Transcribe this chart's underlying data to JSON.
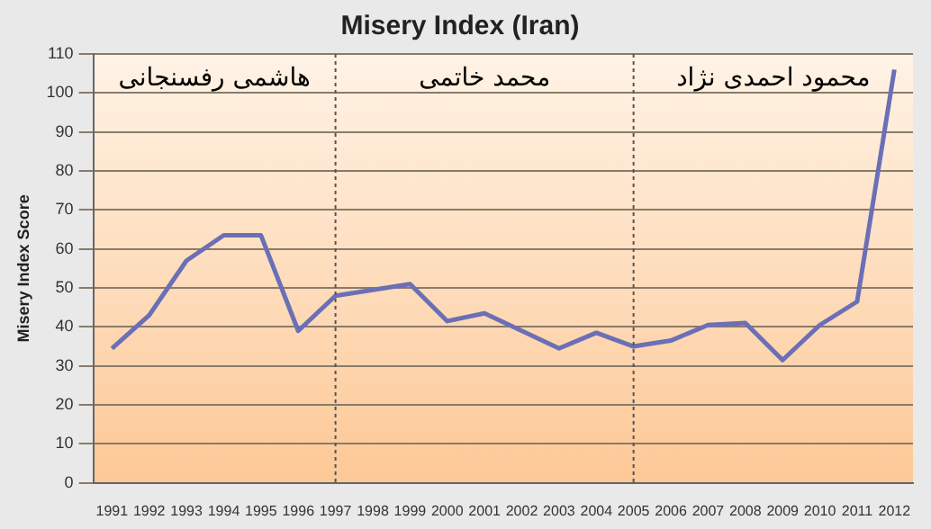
{
  "chart_data": {
    "type": "line",
    "title": "Misery Index (Iran)",
    "ylabel": "Misery Index Score",
    "categories": [
      "1991",
      "1992",
      "1993",
      "1994",
      "1995",
      "1996",
      "1997",
      "1998",
      "1999",
      "2000",
      "2001",
      "2002",
      "2003",
      "2004",
      "2005",
      "2006",
      "2007",
      "2008",
      "2009",
      "2010",
      "2011",
      "2012"
    ],
    "series": [
      {
        "color": "#6b6fb5",
        "values": [
          34.5,
          43,
          57,
          63.5,
          63.5,
          39,
          48,
          49.5,
          51,
          41.5,
          43.5,
          39,
          34.5,
          38.5,
          35,
          36.5,
          40.5,
          41,
          31.5,
          40.5,
          46.5,
          106
        ]
      }
    ],
    "ylim": [
      0,
      110
    ],
    "yticks": [
      0,
      10,
      20,
      30,
      40,
      50,
      60,
      70,
      80,
      90,
      100,
      110
    ],
    "ref_lines": [
      {
        "axis": "x",
        "value": "1997",
        "line_style": "dotted",
        "color": "#555555"
      },
      {
        "axis": "x",
        "value": "2005",
        "line_style": "dotted",
        "color": "#555555"
      }
    ],
    "annotations": [
      "هاشمی رفسنجانی",
      "محمد خاتمی",
      "محمود احمدی نژاد"
    ],
    "grid": "y",
    "legend": false,
    "marker": "none",
    "line_style": "solid"
  }
}
